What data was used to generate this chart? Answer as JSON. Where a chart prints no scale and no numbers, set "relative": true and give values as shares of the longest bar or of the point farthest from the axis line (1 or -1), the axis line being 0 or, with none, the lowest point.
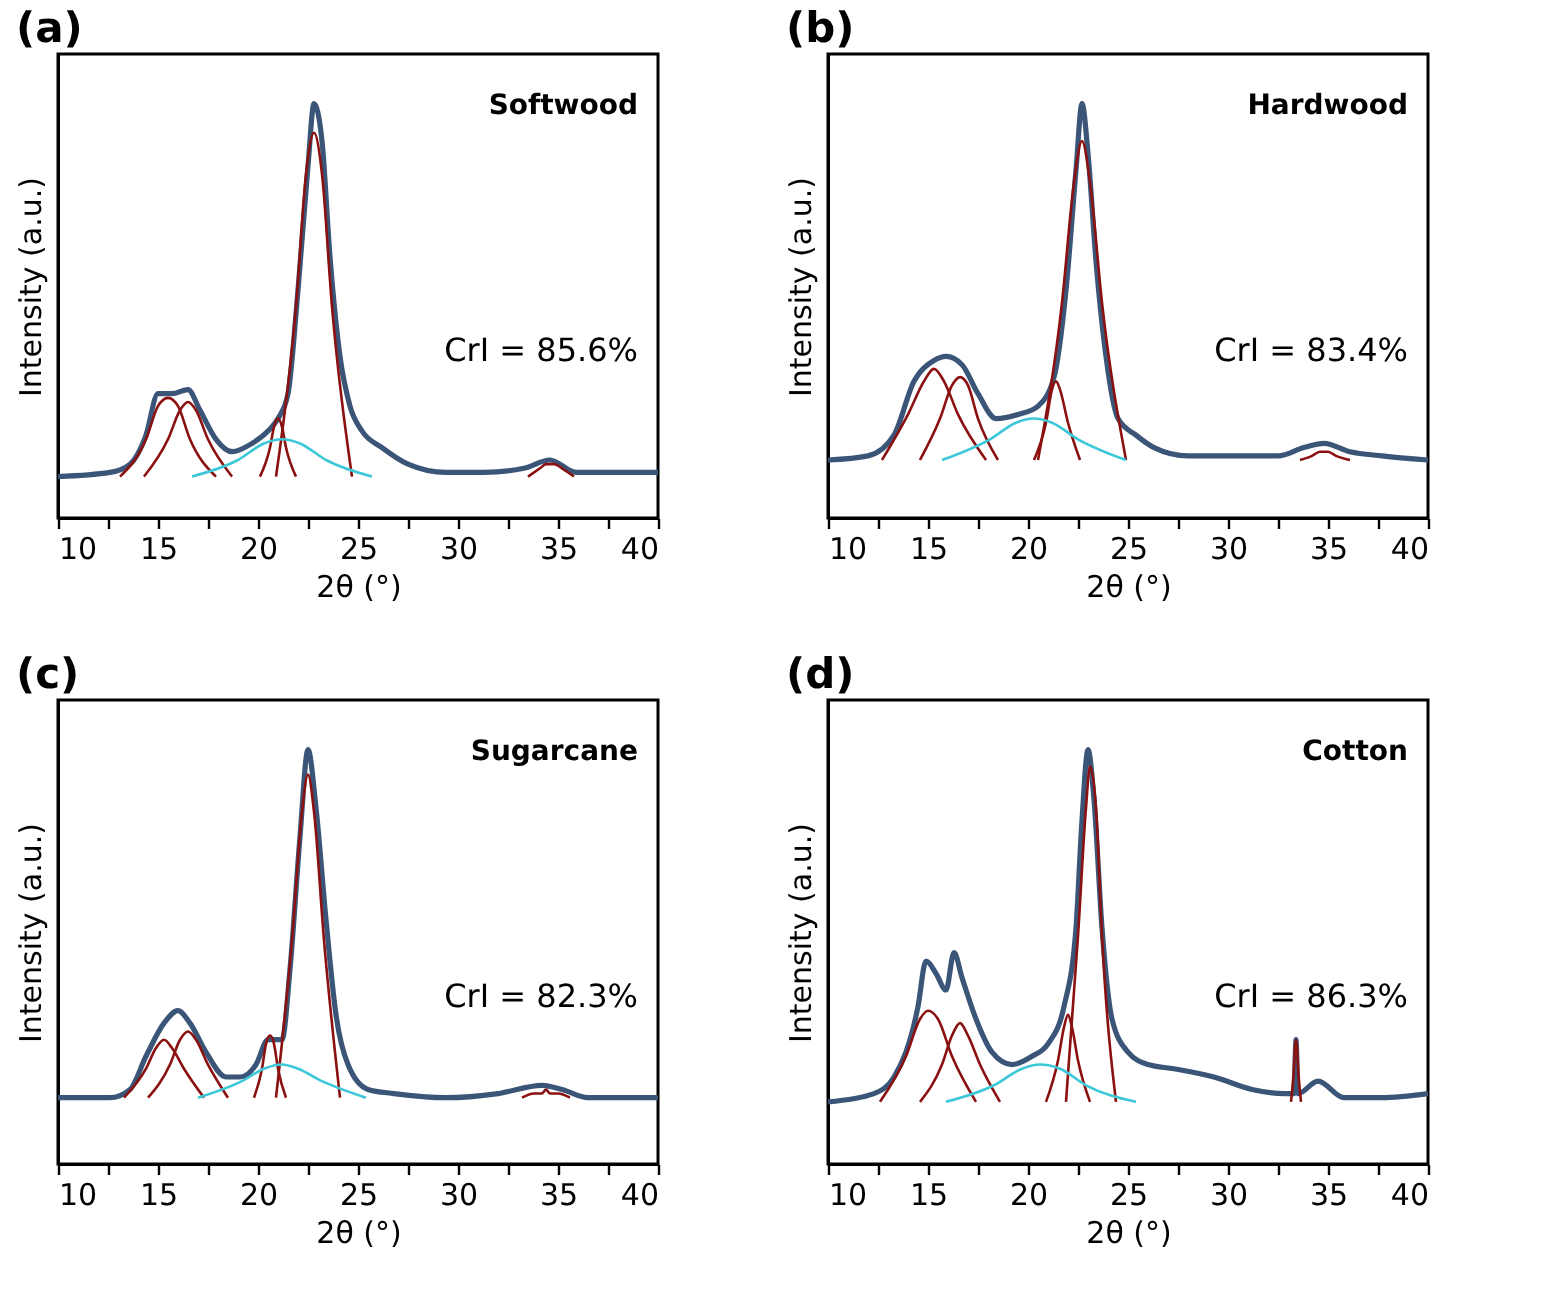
{
  "chart_data": [
    {
      "type": "line",
      "title": "(a)",
      "xlabel": "2θ (°)",
      "ylabel": "Intensity (a.u.)",
      "annotations": [
        "Softwood",
        "CrI = 85.6%"
      ],
      "relative": true,
      "xlim": [
        10,
        40
      ],
      "xticks": [
        10,
        {
          "value": 12.5,
          "label": null
        },
        15,
        {
          "value": 17.5,
          "label": null
        },
        20,
        {
          "value": 22.5,
          "label": null
        },
        25,
        {
          "value": 27.5,
          "label": null
        },
        30,
        {
          "value": 32.5,
          "label": null
        },
        35,
        {
          "value": 37.5,
          "label": null
        },
        40
      ],
      "series": [
        {
          "color": "#3a5577",
          "x": [
            10,
            12.6,
            13.6,
            14.4,
            15,
            15.7,
            16.5,
            17.1,
            17.9,
            18.7,
            19.7,
            20.5,
            21,
            21.5,
            22,
            22.5,
            22.8,
            23.2,
            23.6,
            24.1,
            24.6,
            25.2,
            26.2,
            27.5,
            29.4,
            31.3,
            33.3,
            34.6,
            35.9,
            37.8,
            40
          ],
          "values": [
            0.1,
            0.11,
            0.13,
            0.2,
            0.3,
            0.3,
            0.31,
            0.26,
            0.19,
            0.16,
            0.18,
            0.21,
            0.24,
            0.3,
            0.55,
            0.85,
            1,
            0.91,
            0.63,
            0.39,
            0.27,
            0.21,
            0.17,
            0.13,
            0.11,
            0.11,
            0.12,
            0.14,
            0.11,
            0.11,
            0.11
          ]
        },
        {
          "color": "#8b1010",
          "x": [
            13.1,
            14.4,
            15.0,
            15.5,
            16.0,
            16.6,
            17.9
          ],
          "values": [
            0.1,
            0.19,
            0.27,
            0.29,
            0.27,
            0.19,
            0.1
          ]
        },
        {
          "color": "#8b1010",
          "x": [
            14.3,
            15.5,
            16.1,
            16.5,
            16.9,
            17.5,
            18.7
          ],
          "values": [
            0.1,
            0.19,
            0.26,
            0.28,
            0.26,
            0.19,
            0.1
          ]
        },
        {
          "color": "#8b1010",
          "x": [
            20.1,
            20.6,
            20.8,
            21.0,
            21.2,
            21.4,
            21.9
          ],
          "values": [
            0.1,
            0.17,
            0.22,
            0.24,
            0.22,
            0.17,
            0.1
          ]
        },
        {
          "color": "#8b1010",
          "x": [
            20.9,
            21.9,
            22.4,
            22.8,
            23.2,
            23.7,
            24.7
          ],
          "values": [
            0.1,
            0.51,
            0.83,
            0.93,
            0.83,
            0.51,
            0.1
          ]
        },
        {
          "color": "#8b1010",
          "x": [
            33.5,
            34.1,
            34.4,
            34.6,
            34.8,
            35.2,
            35.8
          ],
          "values": [
            0.1,
            0.12,
            0.13,
            0.13,
            0.13,
            0.12,
            0.1
          ]
        },
        {
          "color": "#3cc8d8",
          "x": [
            16.7,
            19.0,
            20.3,
            21.2,
            22.1,
            23.4,
            25.7
          ],
          "values": [
            0.1,
            0.14,
            0.18,
            0.19,
            0.18,
            0.14,
            0.1
          ]
        }
      ]
    },
    {
      "type": "line",
      "title": "(b)",
      "xlabel": "2θ (°)",
      "ylabel": "Intensity (a.u.)",
      "annotations": [
        "Hardwood",
        "CrI = 83.4%"
      ],
      "relative": true,
      "xlim": [
        10,
        40
      ],
      "xticks": [
        10,
        {
          "value": 12.5,
          "label": null
        },
        15,
        {
          "value": 17.5,
          "label": null
        },
        20,
        {
          "value": 22.5,
          "label": null
        },
        25,
        {
          "value": 27.5,
          "label": null
        },
        30,
        {
          "value": 32.5,
          "label": null
        },
        35,
        {
          "value": 37.5,
          "label": null
        },
        40
      ],
      "series": [
        {
          "color": "#3a5577",
          "x": [
            10,
            12.0,
            13.3,
            14.3,
            15.3,
            15.9,
            16.7,
            17.5,
            18.4,
            19.5,
            20.5,
            21.3,
            21.9,
            22.4,
            22.7,
            23.0,
            23.4,
            23.9,
            24.5,
            25.4,
            26.3,
            28.0,
            30.2,
            32.5,
            33.8,
            34.8,
            36.1,
            37.7,
            40
          ],
          "values": [
            0.14,
            0.15,
            0.2,
            0.33,
            0.38,
            0.39,
            0.37,
            0.3,
            0.24,
            0.25,
            0.27,
            0.34,
            0.55,
            0.84,
            1,
            0.88,
            0.62,
            0.39,
            0.24,
            0.2,
            0.17,
            0.15,
            0.15,
            0.15,
            0.17,
            0.18,
            0.16,
            0.15,
            0.14
          ]
        },
        {
          "color": "#8b1010",
          "x": [
            12.7,
            14.0,
            14.8,
            15.3,
            15.8,
            16.5,
            17.9
          ],
          "values": [
            0.14,
            0.25,
            0.33,
            0.36,
            0.33,
            0.25,
            0.14
          ]
        },
        {
          "color": "#8b1010",
          "x": [
            14.6,
            15.6,
            16.2,
            16.6,
            17.0,
            17.5,
            18.5
          ],
          "values": [
            0.14,
            0.24,
            0.32,
            0.34,
            0.32,
            0.24,
            0.14
          ]
        },
        {
          "color": "#8b1010",
          "x": [
            20.3,
            20.9,
            21.2,
            21.4,
            21.6,
            22.0,
            22.6
          ],
          "values": [
            0.14,
            0.23,
            0.31,
            0.33,
            0.31,
            0.23,
            0.14
          ]
        },
        {
          "color": "#8b1010",
          "x": [
            20.5,
            21.7,
            22.3,
            22.7,
            23.1,
            23.7,
            24.9
          ],
          "values": [
            0.14,
            0.52,
            0.81,
            0.91,
            0.81,
            0.52,
            0.14
          ]
        },
        {
          "color": "#8b1010",
          "x": [
            33.6,
            34.2,
            34.6,
            34.8,
            35.0,
            35.4,
            36.1
          ],
          "values": [
            0.14,
            0.15,
            0.16,
            0.16,
            0.16,
            0.15,
            0.14
          ]
        },
        {
          "color": "#3cc8d8",
          "x": [
            15.7,
            18.1,
            19.4,
            20.3,
            21.2,
            22.5,
            24.9
          ],
          "values": [
            0.14,
            0.19,
            0.23,
            0.24,
            0.23,
            0.19,
            0.14
          ]
        }
      ]
    },
    {
      "type": "line",
      "title": "(c)",
      "xlabel": "2θ (°)",
      "ylabel": "Intensity (a.u.)",
      "annotations": [
        "Sugarcane",
        "CrI = 82.3%"
      ],
      "relative": true,
      "xlim": [
        10,
        40
      ],
      "xticks": [
        10,
        {
          "value": 12.5,
          "label": null
        },
        15,
        {
          "value": 17.5,
          "label": null
        },
        20,
        {
          "value": 22.5,
          "label": null
        },
        25,
        {
          "value": 27.5,
          "label": null
        },
        30,
        {
          "value": 32.5,
          "label": null
        },
        35,
        {
          "value": 37.5,
          "label": null
        },
        40
      ],
      "series": [
        {
          "color": "#3a5577",
          "x": [
            10,
            12.6,
            13.6,
            14.4,
            15.3,
            16.0,
            16.6,
            17.4,
            18.4,
            19.1,
            19.9,
            20.5,
            21.2,
            21.6,
            22.1,
            22.5,
            22.9,
            23.4,
            23.9,
            24.5,
            25.5,
            26.8,
            29.4,
            32.0,
            34.2,
            35.2,
            36.5,
            40
          ],
          "values": [
            0.16,
            0.16,
            0.18,
            0.26,
            0.34,
            0.37,
            0.34,
            0.27,
            0.21,
            0.21,
            0.24,
            0.3,
            0.3,
            0.47,
            0.79,
            1,
            0.86,
            0.59,
            0.36,
            0.24,
            0.18,
            0.17,
            0.16,
            0.17,
            0.19,
            0.18,
            0.16,
            0.16
          ]
        },
        {
          "color": "#8b1010",
          "x": [
            13.3,
            14.4,
            14.9,
            15.3,
            15.7,
            16.3,
            17.3
          ],
          "values": [
            0.16,
            0.23,
            0.28,
            0.3,
            0.28,
            0.23,
            0.16
          ]
        },
        {
          "color": "#8b1010",
          "x": [
            14.5,
            15.6,
            16.1,
            16.5,
            16.9,
            17.5,
            18.5
          ],
          "values": [
            0.16,
            0.24,
            0.3,
            0.32,
            0.3,
            0.24,
            0.16
          ]
        },
        {
          "color": "#8b1010",
          "x": [
            19.8,
            20.2,
            20.4,
            20.6,
            20.8,
            21.0,
            21.4
          ],
          "values": [
            0.16,
            0.23,
            0.29,
            0.31,
            0.29,
            0.23,
            0.16
          ]
        },
        {
          "color": "#8b1010",
          "x": [
            20.9,
            21.7,
            22.2,
            22.5,
            22.8,
            23.3,
            24.1
          ],
          "values": [
            0.16,
            0.54,
            0.85,
            0.94,
            0.85,
            0.54,
            0.16
          ]
        },
        {
          "color": "#8b1010",
          "x": [
            33.2,
            33.8,
            34.2,
            34.4,
            34.6,
            35.0,
            35.6
          ],
          "values": [
            0.16,
            0.17,
            0.17,
            0.18,
            0.17,
            0.17,
            0.16
          ]
        },
        {
          "color": "#3cc8d8",
          "x": [
            17.0,
            19.2,
            20.3,
            21.2,
            22.0,
            23.2,
            25.4
          ],
          "values": [
            0.16,
            0.2,
            0.23,
            0.24,
            0.23,
            0.2,
            0.16
          ]
        }
      ]
    },
    {
      "type": "line",
      "title": "(d)",
      "xlabel": "2θ (°)",
      "ylabel": "Intensity (a.u.)",
      "annotations": [
        "Cotton",
        "CrI = 86.3%"
      ],
      "relative": true,
      "xlim": [
        10,
        40
      ],
      "xticks": [
        10,
        {
          "value": 12.5,
          "label": null
        },
        15,
        {
          "value": 17.5,
          "label": null
        },
        20,
        {
          "value": 22.5,
          "label": null
        },
        25,
        {
          "value": 27.5,
          "label": null
        },
        30,
        {
          "value": 32.5,
          "label": null
        },
        35,
        {
          "value": 37.5,
          "label": null
        },
        40
      ],
      "series": [
        {
          "color": "#3a5577",
          "x": [
            10,
            12.3,
            13.3,
            14.5,
            14.9,
            15.4,
            15.9,
            16.3,
            16.7,
            17.4,
            18.2,
            19.2,
            20.2,
            21.0,
            21.8,
            22.4,
            22.7,
            23.0,
            23.3,
            23.7,
            24.2,
            25.0,
            26.0,
            27.3,
            29.3,
            31.2,
            32.8,
            33.3,
            33.4,
            33.5,
            34.5,
            35.8,
            37.7,
            40
          ],
          "values": [
            0.15,
            0.17,
            0.21,
            0.38,
            0.49,
            0.46,
            0.42,
            0.51,
            0.45,
            0.35,
            0.27,
            0.24,
            0.26,
            0.29,
            0.38,
            0.57,
            0.83,
            1,
            0.88,
            0.57,
            0.35,
            0.27,
            0.24,
            0.23,
            0.21,
            0.18,
            0.17,
            0.17,
            0.3,
            0.17,
            0.2,
            0.16,
            0.16,
            0.17
          ]
        },
        {
          "color": "#8b1010",
          "x": [
            12.6,
            13.9,
            14.6,
            15.0,
            15.5,
            16.2,
            17.4
          ],
          "values": [
            0.15,
            0.26,
            0.35,
            0.37,
            0.35,
            0.26,
            0.15
          ]
        },
        {
          "color": "#8b1010",
          "x": [
            14.6,
            15.7,
            16.2,
            16.6,
            17.0,
            17.6,
            18.6
          ],
          "values": [
            0.15,
            0.24,
            0.31,
            0.34,
            0.31,
            0.24,
            0.15
          ]
        },
        {
          "color": "#8b1010",
          "x": [
            20.9,
            21.5,
            21.8,
            22.0,
            22.2,
            22.5,
            23.1
          ],
          "values": [
            0.15,
            0.25,
            0.33,
            0.36,
            0.33,
            0.25,
            0.15
          ]
        },
        {
          "color": "#8b1010",
          "x": [
            21.9,
            22.5,
            22.9,
            23.1,
            23.4,
            23.7,
            24.4
          ],
          "values": [
            0.15,
            0.55,
            0.86,
            0.96,
            0.86,
            0.55,
            0.15
          ]
        },
        {
          "color": "#8b1010",
          "x": [
            33.15,
            33.28,
            33.35,
            33.4,
            33.45,
            33.52,
            33.65
          ],
          "values": [
            0.15,
            0.22,
            0.28,
            0.3,
            0.28,
            0.22,
            0.15
          ]
        },
        {
          "color": "#3cc8d8",
          "x": [
            15.9,
            18.3,
            19.7,
            20.6,
            21.6,
            22.9,
            25.4
          ],
          "values": [
            0.15,
            0.19,
            0.23,
            0.24,
            0.23,
            0.19,
            0.15
          ]
        }
      ]
    }
  ]
}
